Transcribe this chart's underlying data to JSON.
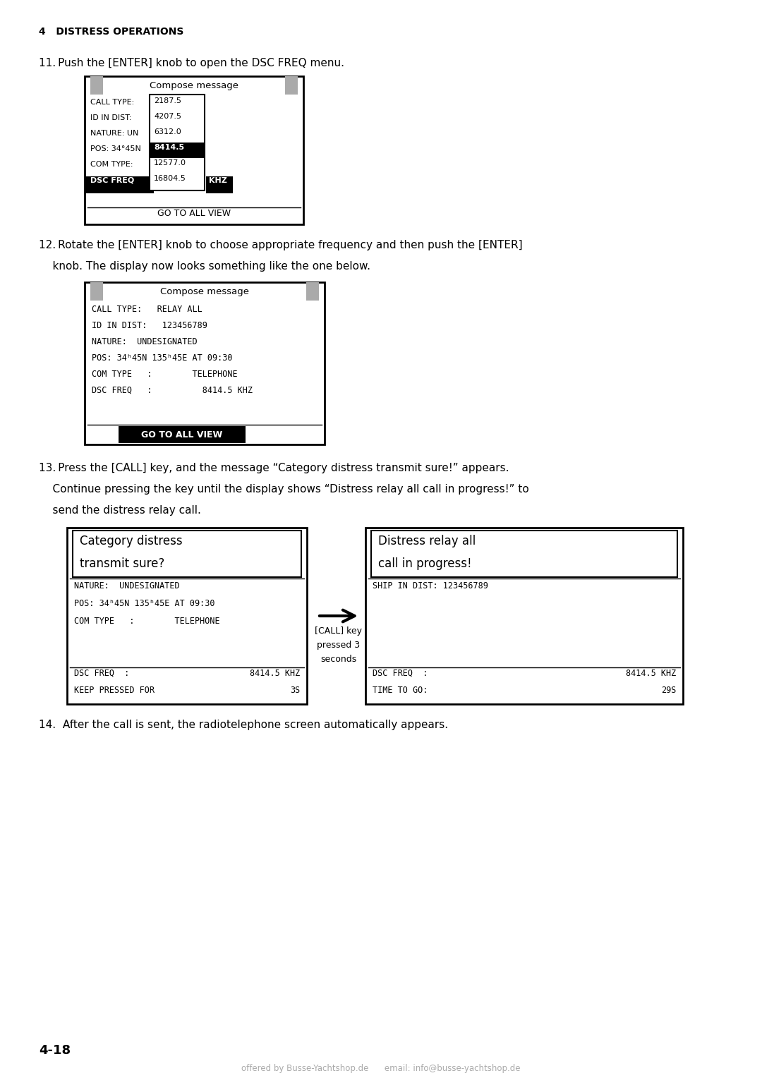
{
  "bg_color": "#ffffff",
  "page_number": "4-18",
  "section_header": "4   DISTRESS OPERATIONS",
  "footer_text": "offered by Busse-Yachtshop.de      email: info@busse-yachtshop.de",
  "step11_text": "11. Push the [ENTER] knob to open the DSC FREQ menu.",
  "step12_text_line1": "12. Rotate the [ENTER] knob to choose appropriate frequency and then push the [ENTER]",
  "step12_text_line2": "    knob. The display now looks something like the one below.",
  "step13_text_line1": "13. Press the [CALL] key, and the message “Category distress transmit sure!” appears.",
  "step13_text_line2": "    Continue pressing the key until the display shows “Distress relay all call in progress!” to",
  "step13_text_line3": "    send the distress relay call.",
  "step14_text": "14.  After the call is sent, the radiotelephone screen automatically appears.",
  "screen1_title": "Compose message",
  "screen1_labels": [
    "CALL TYPE:",
    "ID IN DIST:",
    "NATURE: UN",
    "POS: 34°45N",
    "COM TYPE:"
  ],
  "screen1_freq_vals": [
    "2187.5",
    "4207.5",
    "6312.0",
    "8414.5",
    "12577.0",
    "16804.5"
  ],
  "screen1_selected": "8414.5",
  "screen1_dsc_label": "DSC FREQ",
  "screen1_khz": "KHZ",
  "screen1_footer": "GO TO ALL VIEW",
  "screen2_title": "Compose message",
  "screen2_rows": [
    "CALL TYPE:   RELAY ALL",
    "ID IN DIST:   123456789",
    "NATURE:  UNDESIGNATED",
    "POS: 34ʰ45N 135ʰ45E AT 09:30",
    "COM TYPE   :        TELEPHONE",
    "DSC FREQ   :          8414.5 KHZ"
  ],
  "screen2_footer": "GO TO ALL VIEW",
  "screen3_title_line1": "Category distress",
  "screen3_title_line2": "transmit sure?",
  "screen3_rows": [
    "NATURE:  UNDESIGNATED",
    "POS: 34ʰ45N 135ʰ45E AT 09:30",
    "COM TYPE   :        TELEPHONE"
  ],
  "screen3_footer1_left": "DSC FREQ  :",
  "screen3_footer1_right": "8414.5 KHZ",
  "screen3_footer2_left": "KEEP PRESSED FOR",
  "screen3_footer2_right": "3S",
  "arrow_label": "[CALL] key\npressed 3\nseconds",
  "screen4_title_line1": "Distress relay all",
  "screen4_title_line2": "call in progress!",
  "screen4_ship": "SHIP IN DIST: 123456789",
  "screen4_footer1_left": "DSC FREQ  :",
  "screen4_footer1_right": "8414.5 KHZ",
  "screen4_footer2_left": "TIME TO GO:",
  "screen4_footer2_right": "29S"
}
